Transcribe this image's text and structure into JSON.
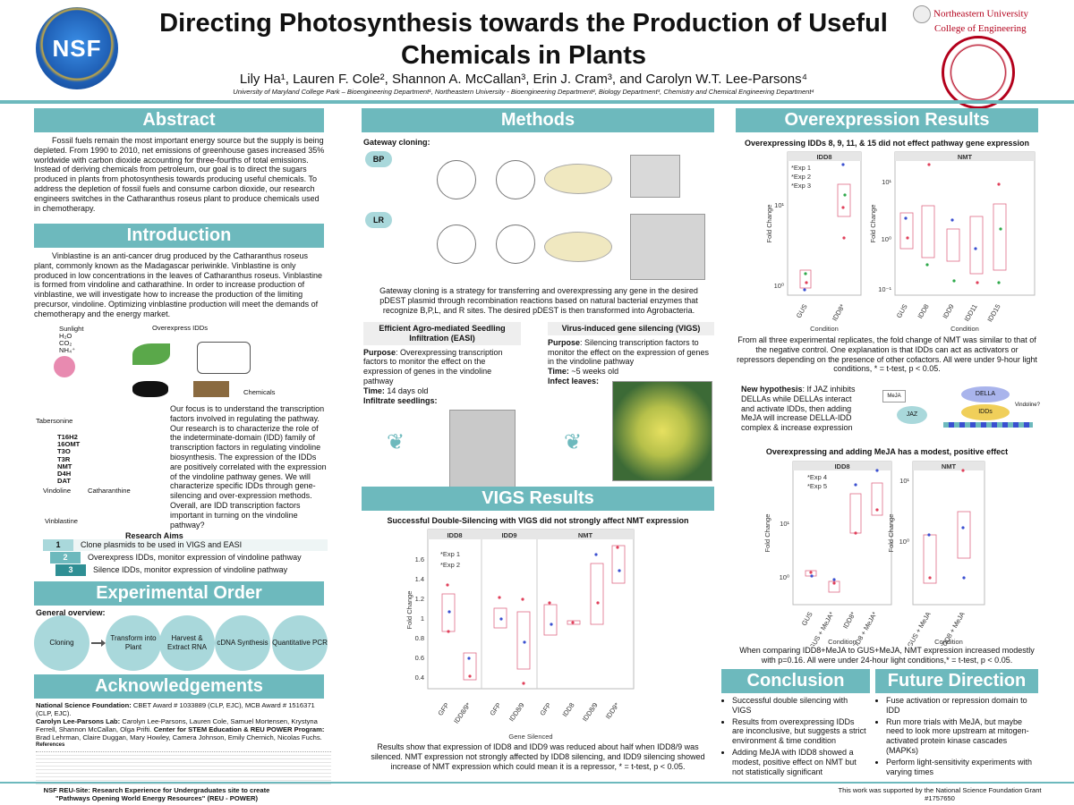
{
  "header": {
    "title": "Directing Photosynthesis towards the Production of Useful Chemicals in Plants",
    "authors": "Lily Ha¹, Lauren F. Cole², Shannon A. McCallan³, Erin J. Cram³, and Carolyn W.T. Lee-Parsons⁴",
    "affiliations": "University of Maryland College Park – Bioengineering Department¹, Northeastern University - Bioengineering Department², Biology Department³, Chemistry and Chemical Engineering Department⁴",
    "nsf_logo": "NSF",
    "nu_name": "Northeastern University",
    "nu_college": "College of Engineering"
  },
  "abstract": {
    "heading": "Abstract",
    "body": "Fossil fuels remain the most important energy source but the supply is being depleted. From 1990 to 2010, net emissions of greenhouse gases increased 35% worldwide with carbon dioxide accounting for three-fourths of total emissions.  Instead of deriving chemicals from petroleum, our goal is to direct the sugars produced in plants from photosynthesis towards producing useful chemicals. To address the depletion of fossil fuels and consume carbon dioxide, our research engineers switches in the Catharanthus roseus plant to produce chemicals used in chemotherapy."
  },
  "introduction": {
    "heading": "Introduction",
    "body": "Vinblastine is an anti-cancer drug produced by the Catharanthus roseus plant, commonly known as the Madagascar periwinkle. Vinblastine is only produced in low concentrations in the leaves of Catharanthus roseus. Vinblastine is formed from vindoline and catharathine. In order to increase production of vinblastine, we will investigate how to increase the production of the limiting precursor, vindoline. Optimizing vinblastine production will meet the demands of chemotherapy and the energy market.",
    "fig_inputs": [
      "Sunlight",
      "H₂O",
      "CO₂",
      "NH₄⁺"
    ],
    "fig_overexpress": "Overexpress IDDs",
    "fig_chemicals": "Chemicals",
    "pathway_start": "Tabersonine",
    "pathway_steps": [
      "T16H2",
      "16OMT",
      "T3O",
      "T3R",
      "NMT",
      "D4H",
      "DAT"
    ],
    "pathway_vindoline": "Vindoline",
    "pathway_catharanthine": "Catharanthine",
    "pathway_vinblastine": "Vinblastine",
    "focus": "Our focus is to understand the transcription factors involved in regulating the pathway. Our research is to characterize the role of the indeterminate-domain (IDD) family of transcription factors in regulating vindoline biosynthesis. The expression of the IDDs are positively correlated with the expression of the vindoline pathway genes. We will characterize specific IDDs through gene-silencing and over-expression methods. Overall, are IDD transcription factors important in turning on the vindoline pathway?",
    "aims_heading": "Research Aims",
    "aims": [
      {
        "num": "1",
        "text": "Clone plasmids to be used in VIGS and EASI"
      },
      {
        "num": "2",
        "text": "Overexpress IDDs, monitor expression of vindoline pathway"
      },
      {
        "num": "3",
        "text": "Silence IDDs, monitor expression of vindoline pathway"
      }
    ]
  },
  "experimental_order": {
    "heading": "Experimental Order",
    "overview": "General overview:",
    "steps": [
      "Cloning",
      "Transform into Plant",
      "Harvest & Extract RNA",
      "cDNA Synthesis",
      "Quantitative PCR"
    ]
  },
  "acknowledgements": {
    "heading": "Acknowledgements",
    "line1_label": "National Science Foundation:",
    "line1": "CBET Award # 1033889 (CLP, EJC), MCB Award # 1516371 (CLP, EJC).",
    "line2_label": "Carolyn Lee-Parsons Lab:",
    "line2": "Carolyn Lee-Parsons, Lauren Cole, Samuel Mortensen, Krystyna Ferrell, Shannon McCallan, Olga Prifti.",
    "line2b_label": "Center for STEM Education & REU POWER Program:",
    "line2b": "Brad Lehrman, Claire Duggan, Mary Howley, Camera Johnson, Emily Chernich, Nicolas Fuchs.",
    "references": "References"
  },
  "methods": {
    "heading": "Methods",
    "gateway_label": "Gateway cloning:",
    "bp": "BP",
    "lr": "LR",
    "gateway_text": "Gateway cloning is a strategy for transferring and overexpressing any gene in the desired pDEST plasmid through recombination reactions based on natural bacterial enzymes that recognize B,P,L, and R sites. The desired pDEST is then transformed into Agrobacteria.",
    "easi_title": "Efficient Agro-mediated Seedling Infiltration (EASI)",
    "easi_purpose_label": "Purpose",
    "easi_purpose": ": Overexpressing transcription factors to monitor the effect on the expression of genes in the vindoline pathway",
    "easi_time_label": "Time:",
    "easi_time": " 14 days old",
    "easi_infiltrate": "Infiltrate seedlings:",
    "vigs_title": "Virus-induced gene silencing (VIGS)",
    "vigs_purpose_label": "Purpose",
    "vigs_purpose": ": Silencing transcription factors to monitor the effect on the expression of genes in the vindoline pathway",
    "vigs_time_label": "Time:",
    "vigs_time": " ~5 weeks old",
    "vigs_infect": "Infect leaves:"
  },
  "vigs_results": {
    "heading": "VIGS Results",
    "plot_title": "Successful Double-Silencing with VIGS did not strongly affect NMT expression",
    "panels": [
      "IDD8",
      "IDD9",
      "NMT"
    ],
    "legend": [
      "*Exp 1",
      "*Exp 2"
    ],
    "ylabel": "Fold Change",
    "xlabel": "Gene Silenced",
    "xticks": [
      "GFP",
      "IDD8/9*",
      "GFP",
      "IDD8/9",
      "GFP",
      "IDD8",
      "IDD8/9",
      "IDD9*"
    ],
    "yticks": [
      "1.6",
      "1.4",
      "1.2",
      "1",
      "0.8",
      "0.6",
      "0.4"
    ],
    "caption": "Results show that expression of IDD8 and IDD9 was reduced about half when IDD8/9 was silenced. NMT expression not strongly affected by IDD8 silencing, and IDD9 silencing showed increase of NMT expression which could mean it is a repressor, * = t-test, p < 0.05."
  },
  "overexpression_results": {
    "heading": "Overexpression Results",
    "plot1_title": "Overexpressing IDDs 8, 9, 11, & 15 did not effect pathway gene expression",
    "plot1_panels": [
      "IDD8",
      "NMT"
    ],
    "plot1_legend": [
      "*Exp 1",
      "*Exp 2",
      "*Exp 3"
    ],
    "plot1_xticks_a": [
      "GUS",
      "IDD8*"
    ],
    "plot1_xticks_b": [
      "GUS",
      "IDD8",
      "IDD9",
      "IDD11",
      "IDD15"
    ],
    "ylabel": "Fold Change",
    "xlabel": "Condition",
    "plot1_caption": "From all three experimental replicates, the fold change of NMT was similar to that of the negative control. One explanation is that IDDs can act as activators or repressors depending on the presence of other cofactors. All were under 9-hour light conditions, * = t-test, p < 0.05.",
    "hypothesis_label": "New hypothesis",
    "hypothesis": ": If JAZ inhibits DELLAs while DELLAs interact and activate IDDs, then adding MeJA will increase DELLA-IDD complex & increase expression",
    "diag_meja": "MeJA",
    "diag_jaz": "JAZ",
    "diag_della": "DELLA",
    "diag_idds": "IDDs",
    "diag_vindoline": "Vindoline?",
    "plot2_title": "Overexpressing and adding MeJA has a modest, positive effect",
    "plot2_panels": [
      "IDD8",
      "NMT"
    ],
    "plot2_legend": [
      "*Exp 4",
      "*Exp 5"
    ],
    "plot2_xticks_a": [
      "GUS",
      "GUS + MeJA*",
      "IDD8*",
      "IDD8 + MeJA*"
    ],
    "plot2_xticks_b": [
      "GUS + MeJA",
      "IDD8 + MeJA"
    ],
    "plot2_caption": "When comparing IDD8+MeJA to GUS+MeJA, NMT expression increased modestly with p=0.16. All were under 24-hour light conditions,* = t-test, p < 0.05."
  },
  "conclusion": {
    "heading": "Conclusion",
    "items": [
      "Successful double silencing with VIGS",
      "Results from overexpressing IDDs are inconclusive, but suggests a strict environment & time condition",
      "Adding MeJA with IDD8 showed a modest, positive effect on NMT but not statistically significant"
    ]
  },
  "future": {
    "heading": "Future Direction",
    "items": [
      "Fuse activation or repression domain to IDD",
      "Run more trials with MeJA, but maybe need to look more upstream at mitogen-activated protein kinase cascades (MAPKs)",
      "Perform light-sensitivity experiments with varying times"
    ]
  },
  "footer": {
    "left": "NSF REU-Site: Research Experience for Undergraduates site to create \"Pathways Opening World Energy Resources\" (REU - POWER)",
    "right": "This work was supported by the National Science Foundation Grant #1757650"
  },
  "colors": {
    "accent": "#6db9bd",
    "exp1": "#e0405a",
    "exp2": "#2ea84a",
    "exp3": "#3a4fd0"
  }
}
